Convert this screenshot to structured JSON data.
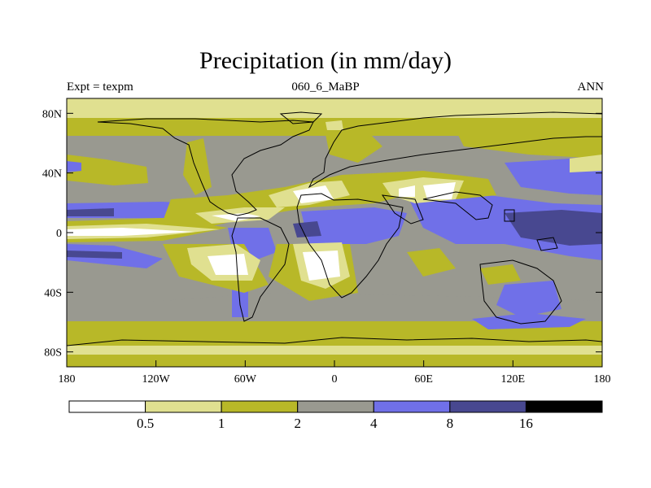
{
  "title": "Precipitation (in mm/day)",
  "subtitle_left": "Expt = texpm",
  "subtitle_center": "060_6_MaBP",
  "subtitle_right": "ANN",
  "lon_ticks": [
    "180",
    "120W",
    "60W",
    "0",
    "60E",
    "120E",
    "180"
  ],
  "lon_values": [
    -180,
    -120,
    -60,
    0,
    60,
    120,
    180
  ],
  "lat_ticks": [
    "80N",
    "40N",
    "0",
    "40S",
    "80S"
  ],
  "lat_values": [
    80,
    40,
    0,
    -40,
    -80
  ],
  "colorbar": {
    "thresholds": [
      "0.5",
      "1",
      "2",
      "4",
      "8",
      "16"
    ],
    "colors": [
      "#ffffff",
      "#e0e090",
      "#b8b828",
      "#999990",
      "#7070e8",
      "#484890",
      "#000000"
    ]
  }
}
